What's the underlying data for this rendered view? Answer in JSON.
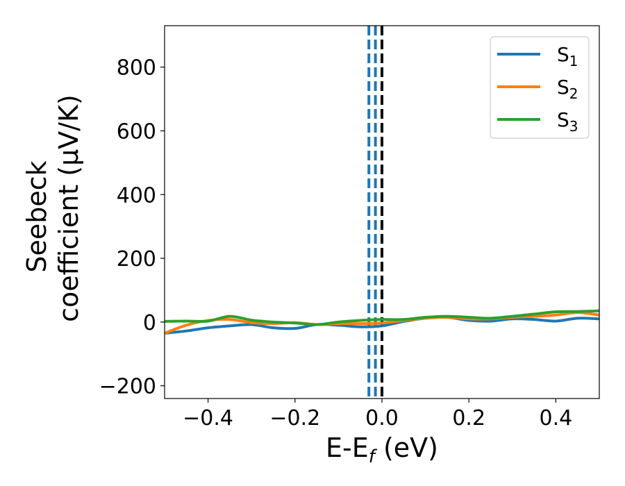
{
  "chart_data": {
    "type": "line",
    "xlabel": {
      "main": "E-E",
      "sub": "f",
      "tail": " (eV)"
    },
    "ylabel": {
      "line1": "Seebeck",
      "line2": "coefficient  (μV/K)"
    },
    "xlim": [
      -0.5,
      0.5
    ],
    "ylim": [
      -240,
      930
    ],
    "xticks": [
      -0.4,
      -0.2,
      0.0,
      0.2,
      0.4
    ],
    "xtick_labels": [
      "−0.4",
      "−0.2",
      "0.0",
      "0.2",
      "0.4"
    ],
    "yticks": [
      -200,
      0,
      200,
      400,
      600,
      800
    ],
    "ytick_labels": [
      "−200",
      "0",
      "200",
      "400",
      "600",
      "800"
    ],
    "grid": false,
    "legend_position": "top-right",
    "vlines": [
      {
        "x": -0.03,
        "color": "#1f77b4",
        "style": "dashed"
      },
      {
        "x": -0.015,
        "color": "#1f77b4",
        "style": "dashed"
      },
      {
        "x": 0.0,
        "color": "#1f77b4",
        "style": "dashed"
      },
      {
        "x": 0.0,
        "color": "#000000",
        "style": "dashed"
      }
    ],
    "x": [
      -0.5,
      -0.45,
      -0.4,
      -0.35,
      -0.3,
      -0.25,
      -0.2,
      -0.15,
      -0.1,
      -0.05,
      0.0,
      0.05,
      0.1,
      0.15,
      0.2,
      0.25,
      0.3,
      0.35,
      0.4,
      0.45,
      0.5
    ],
    "series": [
      {
        "name": "S",
        "sub": "1",
        "color": "#1f77b4",
        "values": [
          -35,
          -28,
          -18,
          -12,
          -8,
          -18,
          -20,
          -8,
          -10,
          -15,
          -12,
          2,
          12,
          15,
          5,
          3,
          10,
          8,
          3,
          12,
          10
        ]
      },
      {
        "name": "S",
        "sub": "2",
        "color": "#ff7f0e",
        "values": [
          -35,
          -10,
          5,
          8,
          -2,
          -5,
          -2,
          -8,
          -5,
          -5,
          -3,
          5,
          12,
          15,
          10,
          10,
          15,
          18,
          22,
          30,
          22
        ]
      },
      {
        "name": "S",
        "sub": "3",
        "color": "#2ca02c",
        "values": [
          2,
          3,
          3,
          18,
          6,
          0,
          -3,
          -8,
          0,
          5,
          8,
          8,
          15,
          18,
          15,
          12,
          18,
          25,
          32,
          33,
          35
        ]
      }
    ]
  }
}
